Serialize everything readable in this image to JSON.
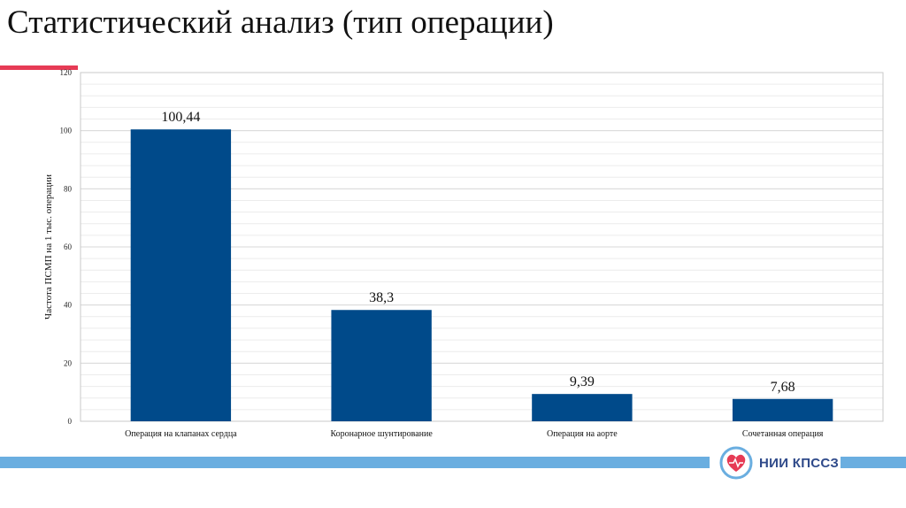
{
  "slide": {
    "title": "Статистический анализ (тип операции)",
    "logo_text": "НИИ КПССЗ"
  },
  "colors": {
    "bar": "#004a8a",
    "accent": "#e63b55",
    "footer": "#6aaee0",
    "grid": "#d9d9d9"
  },
  "chart_data": {
    "type": "bar",
    "title": "",
    "xlabel": "",
    "ylabel": "Частота ПСМП на 1 тыс. операции",
    "ylim": [
      0,
      120
    ],
    "yticks": [
      0,
      20,
      40,
      60,
      80,
      100,
      120
    ],
    "grid": true,
    "categories": [
      "Операция на клапанах сердца",
      "Коронарное шунтирование",
      "Операция на аорте",
      "Сочетанная операция"
    ],
    "values": [
      100.44,
      38.3,
      9.39,
      7.68
    ],
    "data_labels": [
      "100,44",
      "38,3",
      "9,39",
      "7,68"
    ]
  }
}
